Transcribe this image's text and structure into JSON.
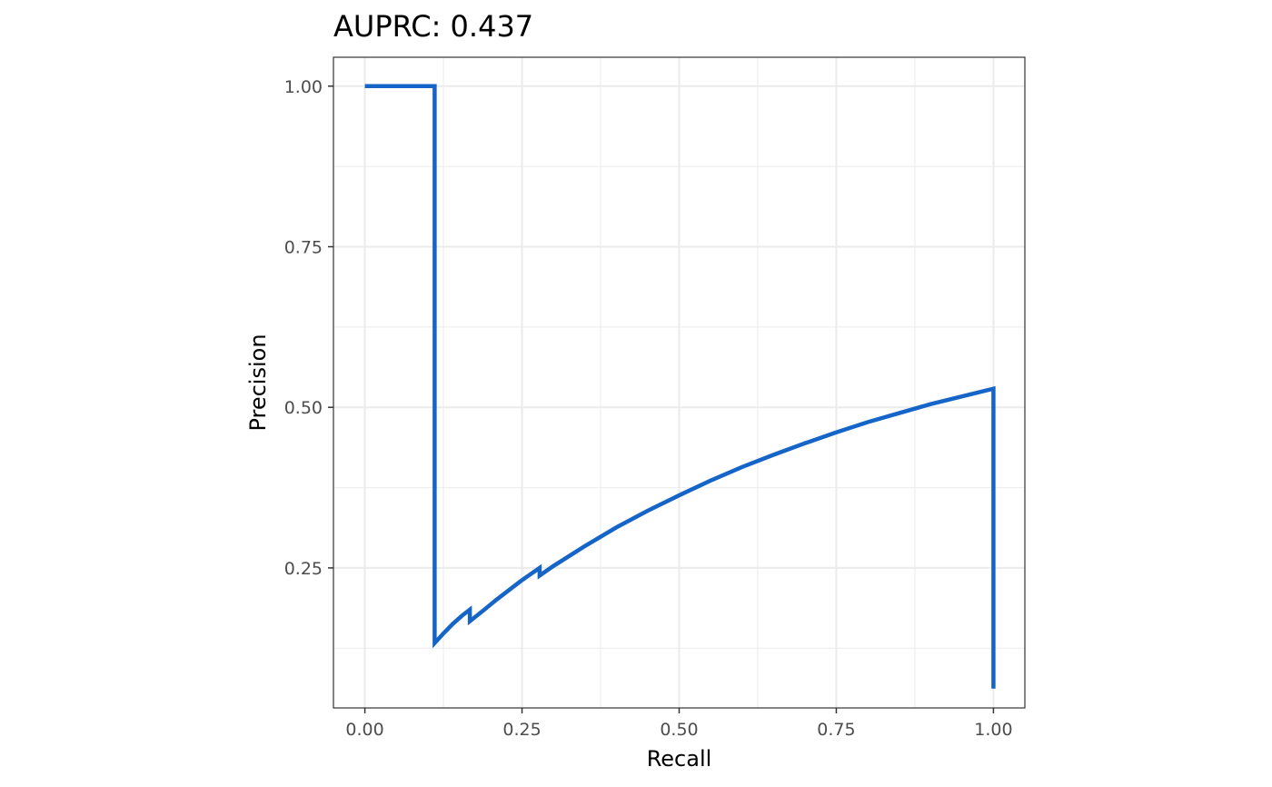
{
  "chart_data": {
    "type": "line",
    "title": "AUPRC: 0.437",
    "xlabel": "Recall",
    "ylabel": "Precision",
    "xlim": [
      -0.05,
      1.05
    ],
    "ylim": [
      0.032,
      1.045
    ],
    "x_ticks": [
      0.0,
      0.25,
      0.5,
      0.75,
      1.0
    ],
    "x_tick_labels": [
      "0.00",
      "0.25",
      "0.50",
      "0.75",
      "1.00"
    ],
    "y_ticks": [
      0.25,
      0.5,
      0.75,
      1.0
    ],
    "y_tick_labels": [
      "0.25",
      "0.50",
      "0.75",
      "1.00"
    ],
    "x_minor_ticks": [
      0.125,
      0.375,
      0.625,
      0.875
    ],
    "y_minor_ticks": [
      0.125,
      0.375,
      0.625,
      0.875
    ],
    "grid": true,
    "series": [
      {
        "color": "#1565c9",
        "points": [
          [
            0.0,
            1.0
          ],
          [
            0.111,
            1.0
          ],
          [
            0.111,
            0.133
          ],
          [
            0.125,
            0.148
          ],
          [
            0.14,
            0.163
          ],
          [
            0.155,
            0.176
          ],
          [
            0.167,
            0.185
          ],
          [
            0.167,
            0.167
          ],
          [
            0.19,
            0.185
          ],
          [
            0.21,
            0.201
          ],
          [
            0.23,
            0.216
          ],
          [
            0.25,
            0.231
          ],
          [
            0.278,
            0.25
          ],
          [
            0.278,
            0.238
          ],
          [
            0.3,
            0.253
          ],
          [
            0.35,
            0.284
          ],
          [
            0.4,
            0.313
          ],
          [
            0.45,
            0.339
          ],
          [
            0.5,
            0.363
          ],
          [
            0.55,
            0.386
          ],
          [
            0.6,
            0.407
          ],
          [
            0.65,
            0.426
          ],
          [
            0.7,
            0.444
          ],
          [
            0.75,
            0.461
          ],
          [
            0.8,
            0.477
          ],
          [
            0.85,
            0.491
          ],
          [
            0.9,
            0.505
          ],
          [
            0.95,
            0.517
          ],
          [
            1.0,
            0.529
          ],
          [
            1.0,
            0.062
          ]
        ]
      }
    ]
  }
}
